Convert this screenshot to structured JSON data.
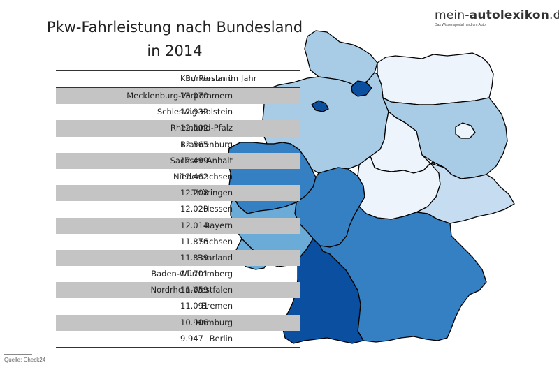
{
  "title": {
    "line1": "Pkw-Fahrleistung nach Bundesland",
    "line2": "in 2014"
  },
  "brand": {
    "prefix": "mein-",
    "accent": "autolexikon",
    "suffix": ".de",
    "tagline": "Das Wissensportal rund um Auto"
  },
  "source": "Quelle: Check24",
  "colors": {
    "darkest": "#0b4fa0",
    "dark": "#3580c2",
    "medium": "#6aabd8",
    "light": "#a8cce6",
    "lighter": "#c6dcf0",
    "lightest": "#eef4fc",
    "row_shade": "#c4c4c4"
  },
  "chart_data": {
    "type": "table",
    "title": "Pkw-Fahrleistung nach Bundesland in 2014",
    "columns": [
      "Bundesland",
      "Km/ Person im Jahr"
    ],
    "rows": [
      {
        "state": "Mecklenburg-Vorpommern",
        "km": "13.070",
        "value": 13070
      },
      {
        "state": "Schleswig-Holstein",
        "km": "12.932",
        "value": 12932
      },
      {
        "state": "Rheinland-Pfalz",
        "km": "12.602",
        "value": 12602
      },
      {
        "state": "Brandenburg",
        "km": "12.565",
        "value": 12565
      },
      {
        "state": "Sachsen-Anhalt",
        "km": "12.499",
        "value": 12499
      },
      {
        "state": "Niedersachsen",
        "km": "12.462",
        "value": 12462
      },
      {
        "state": "Thüringen",
        "km": "12.208",
        "value": 12208
      },
      {
        "state": "Hessen",
        "km": "12.020",
        "value": 12020
      },
      {
        "state": "Bayern",
        "km": "12.014",
        "value": 12014
      },
      {
        "state": "Sachsen",
        "km": "11.876",
        "value": 11876
      },
      {
        "state": "Saarland",
        "km": "11.839",
        "value": 11839
      },
      {
        "state": "Baden-Württemberg",
        "km": "11.701",
        "value": 11701
      },
      {
        "state": "Nordrhein-Westfalen",
        "km": "11.659",
        "value": 11659
      },
      {
        "state": "Bremen",
        "km": "11.091",
        "value": 11091
      },
      {
        "state": "Hamburg",
        "km": "10.906",
        "value": 10906
      },
      {
        "state": "Berlin",
        "km": "9.947",
        "value": 9947
      }
    ],
    "map_shading": {
      "Schleswig-Holstein": "light",
      "Mecklenburg-Vorpommern": "lightest",
      "Hamburg": "darkest",
      "Bremen": "darkest",
      "Niedersachsen": "light",
      "Brandenburg": "light",
      "Berlin": "lightest",
      "Sachsen-Anhalt": "lightest",
      "Nordrhein-Westfalen": "dark",
      "Hessen": "dark",
      "Thüringen": "lightest",
      "Sachsen": "lighter",
      "Rheinland-Pfalz": "medium",
      "Saarland": "medium",
      "Bayern": "dark",
      "Baden-Württemberg": "darkest"
    }
  }
}
